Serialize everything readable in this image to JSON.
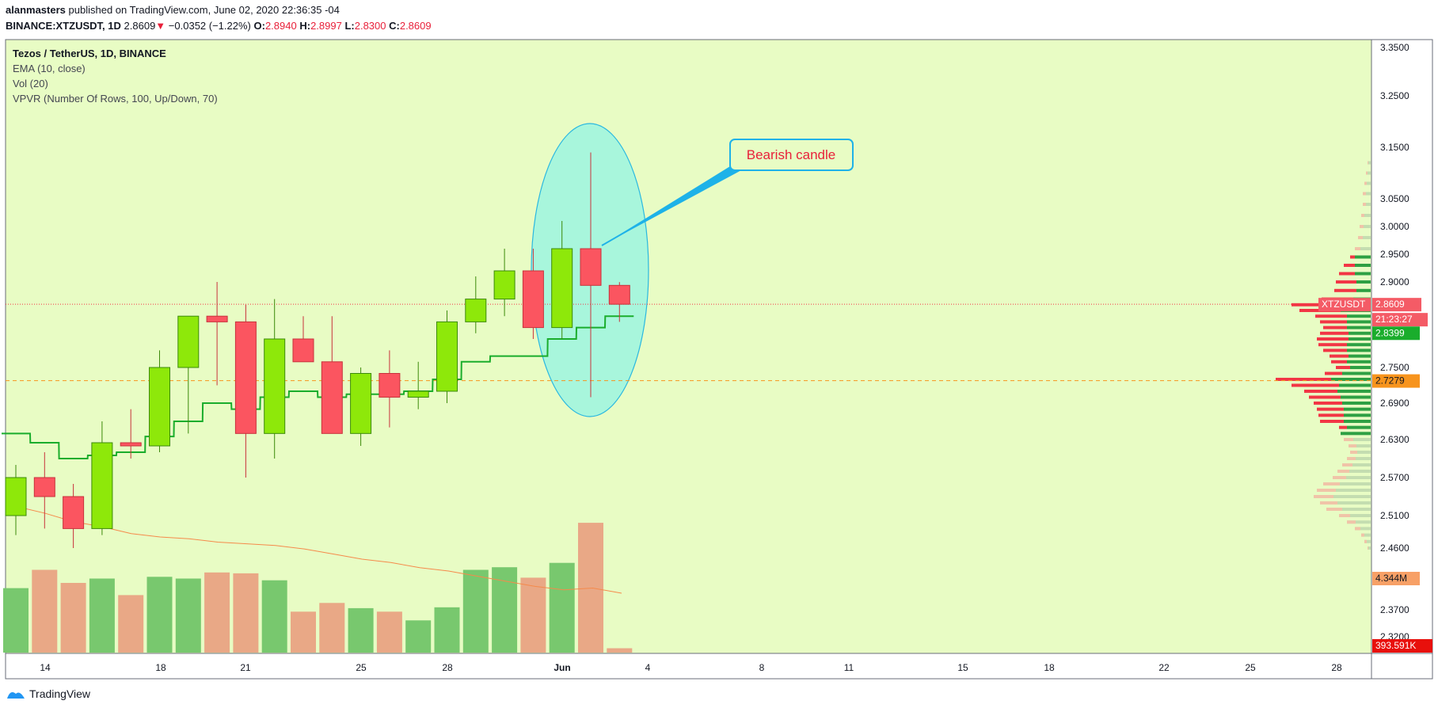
{
  "header": {
    "author": "alanmasters",
    "published_text": "published on TradingView.com, June 02, 2020 22:36:35 -04",
    "symbol": "BINANCE:XTZUSDT, 1D",
    "last": "2.8609",
    "arrow": "▼",
    "change": "−0.0352 (−1.22%)",
    "o_label": "O:",
    "o_value": "2.8940",
    "h_label": "H:",
    "h_value": "2.8997",
    "l_label": "L:",
    "l_value": "2.8300",
    "c_label": "C:",
    "c_value": "2.8609"
  },
  "legend": {
    "title": "Tezos / TetherUS, 1D, BINANCE",
    "ema": "EMA (10, close)",
    "vol": "Vol (20)",
    "vpvr": "VPVR (Number Of Rows, 100, Up/Down, 70)"
  },
  "annotation": {
    "text": "Bearish candle"
  },
  "footer": {
    "brand": "TradingView"
  },
  "colors": {
    "background": "#e8fcc4",
    "up": "#8ee80a",
    "down": "#fb5560",
    "vol_up": "#78c86e",
    "vol_down": "#e9a886",
    "ema": "#1aad2c",
    "vol_ma": "#f58a4b",
    "highlight": "#a8f6dc",
    "callout": "#1eb2e8"
  },
  "chart_data": {
    "type": "candlestick",
    "x_tick_labels": [
      "14",
      "18",
      "21",
      "25",
      "28",
      "Jun",
      "4",
      "8",
      "11",
      "15",
      "18",
      "22",
      "25",
      "28"
    ],
    "y_tick_labels": [
      "3.3500",
      "3.2500",
      "3.1500",
      "3.0500",
      "3.0000",
      "2.9500",
      "2.9000",
      "2.7500",
      "2.6900",
      "2.6300",
      "2.5700",
      "2.5100",
      "2.4600",
      "2.3700",
      "2.3200"
    ],
    "ylim": [
      2.28,
      3.37
    ],
    "candles": [
      {
        "o": 2.51,
        "h": 2.59,
        "l": 2.48,
        "c": 2.57
      },
      {
        "o": 2.57,
        "h": 2.61,
        "l": 2.49,
        "c": 2.54
      },
      {
        "o": 2.54,
        "h": 2.56,
        "l": 2.46,
        "c": 2.49
      },
      {
        "o": 2.49,
        "h": 2.66,
        "l": 2.48,
        "c": 2.625
      },
      {
        "o": 2.625,
        "h": 2.68,
        "l": 2.6,
        "c": 2.62
      },
      {
        "o": 2.62,
        "h": 2.78,
        "l": 2.61,
        "c": 2.75
      },
      {
        "o": 2.75,
        "h": 2.84,
        "l": 2.64,
        "c": 2.84
      },
      {
        "o": 2.84,
        "h": 2.9,
        "l": 2.72,
        "c": 2.83
      },
      {
        "o": 2.83,
        "h": 2.86,
        "l": 2.57,
        "c": 2.64
      },
      {
        "o": 2.64,
        "h": 2.87,
        "l": 2.6,
        "c": 2.8
      },
      {
        "o": 2.8,
        "h": 2.84,
        "l": 2.76,
        "c": 2.76
      },
      {
        "o": 2.76,
        "h": 2.84,
        "l": 2.64,
        "c": 2.64
      },
      {
        "o": 2.64,
        "h": 2.75,
        "l": 2.62,
        "c": 2.74
      },
      {
        "o": 2.74,
        "h": 2.78,
        "l": 2.65,
        "c": 2.7
      },
      {
        "o": 2.7,
        "h": 2.76,
        "l": 2.68,
        "c": 2.71
      },
      {
        "o": 2.71,
        "h": 2.85,
        "l": 2.69,
        "c": 2.83
      },
      {
        "o": 2.83,
        "h": 2.91,
        "l": 2.81,
        "c": 2.87
      },
      {
        "o": 2.87,
        "h": 2.96,
        "l": 2.84,
        "c": 2.92
      },
      {
        "o": 2.92,
        "h": 2.96,
        "l": 2.8,
        "c": 2.82
      },
      {
        "o": 2.82,
        "h": 3.01,
        "l": 2.8,
        "c": 2.96
      },
      {
        "o": 2.96,
        "h": 3.14,
        "l": 2.7,
        "c": 2.894
      },
      {
        "o": 2.894,
        "h": 2.8997,
        "l": 2.83,
        "c": 2.8609
      }
    ],
    "ema_values": [
      2.64,
      2.625,
      2.6,
      2.605,
      2.61,
      2.635,
      2.66,
      2.69,
      2.68,
      2.7,
      2.71,
      2.7,
      2.705,
      2.705,
      2.71,
      2.73,
      2.76,
      2.77,
      2.77,
      2.8,
      2.82,
      2.84
    ],
    "volume": [
      0.74,
      0.95,
      0.8,
      0.85,
      0.66,
      0.87,
      0.85,
      0.92,
      0.91,
      0.83,
      0.47,
      0.57,
      0.51,
      0.47,
      0.37,
      0.52,
      0.95,
      0.98,
      0.86,
      1.03,
      1.49,
      0.05
    ],
    "vol_ma": [
      1.5,
      1.46,
      1.41,
      1.38,
      1.34,
      1.32,
      1.31,
      1.29,
      1.28,
      1.27,
      1.25,
      1.22,
      1.19,
      1.17,
      1.14,
      1.12,
      1.09,
      1.06,
      1.03,
      1.01,
      1.02,
      0.99
    ],
    "price_labels": {
      "symbol_tag": "XTZUSDT",
      "last_price": "2.8609",
      "countdown": "21:23:27",
      "ema_price": "2.8399",
      "poc_price": "2.7279",
      "vol_ma_value": "4.344M",
      "volume_value": "393.591K"
    },
    "last_price_value": 2.8609,
    "poc_value": 2.7279,
    "ema_last_value": 2.8399
  }
}
